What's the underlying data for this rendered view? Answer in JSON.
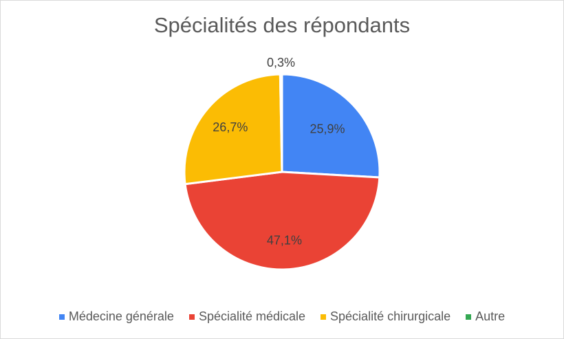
{
  "chart_data": {
    "type": "pie",
    "title": "Spécialités des répondants",
    "categories": [
      "Médecine générale",
      "Spécialité médicale",
      "Spécialité chirurgicale",
      "Autre"
    ],
    "values": [
      25.9,
      47.1,
      26.7,
      0.3
    ],
    "labels": [
      "25,9%",
      "47,1%",
      "26,7%",
      "0,3%"
    ],
    "colors": [
      "#4285f4",
      "#ea4335",
      "#fbbc04",
      "#34a853"
    ],
    "legend_position": "bottom"
  }
}
